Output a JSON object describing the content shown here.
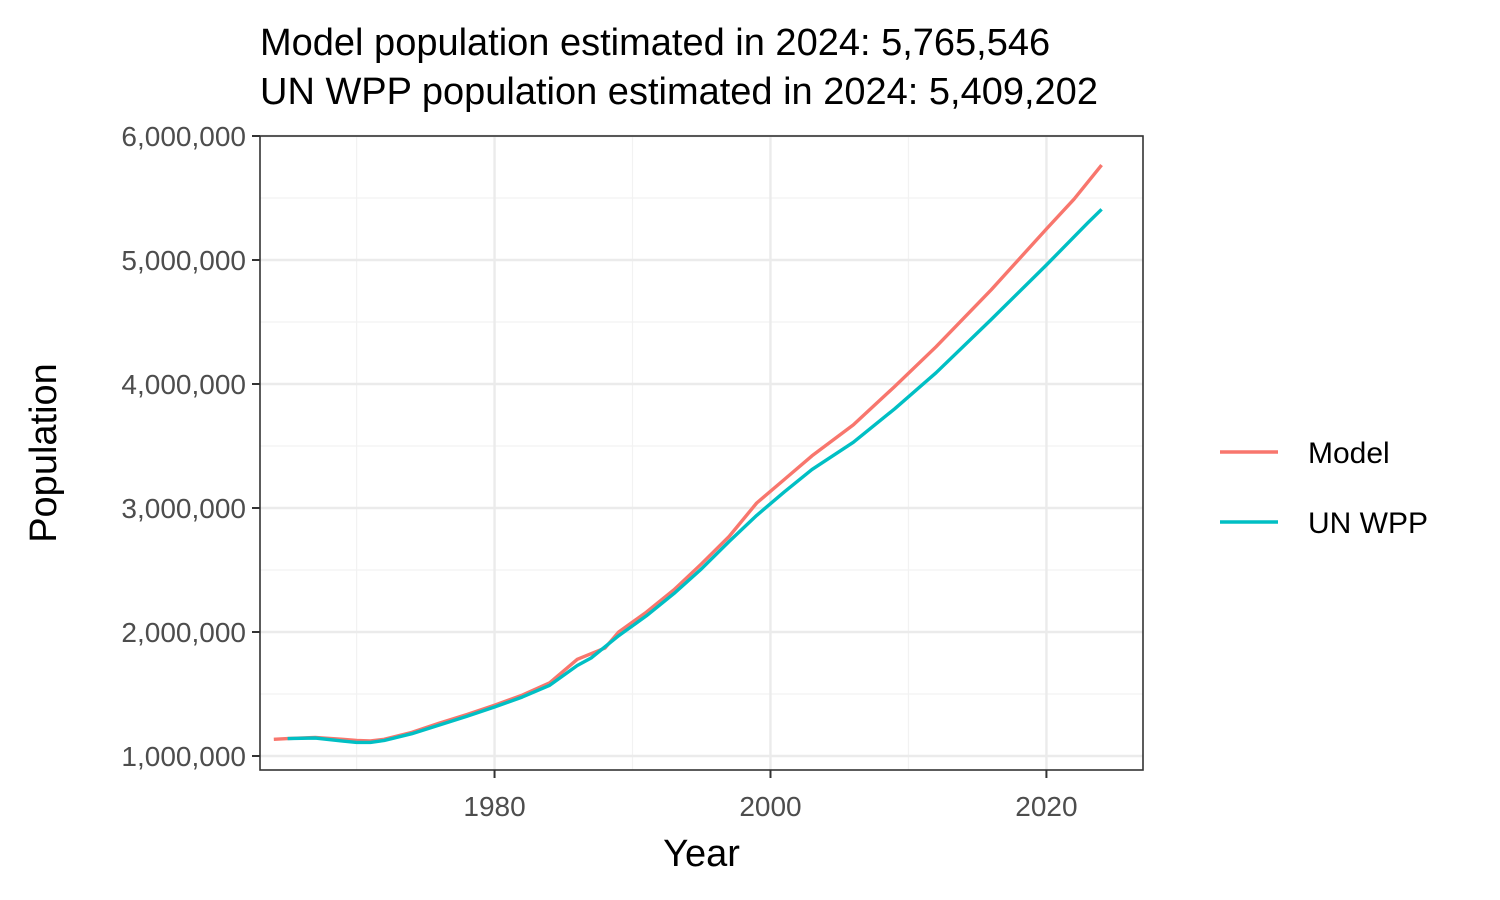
{
  "chart_data": {
    "type": "line",
    "title_lines": [
      "Model population estimated in 2024: 5,765,546",
      "UN WPP population estimated in 2024: 5,409,202"
    ],
    "xlabel": "Year",
    "ylabel": "Population",
    "xlim": [
      1963,
      2027
    ],
    "ylim": [
      900000,
      6000000
    ],
    "x_ticks": [
      1980,
      2000,
      2020
    ],
    "x_minor_ticks": [
      1970,
      1990,
      2010
    ],
    "y_ticks": [
      1000000,
      2000000,
      3000000,
      4000000,
      5000000,
      6000000
    ],
    "y_tick_labels": [
      "1,000,000",
      "2,000,000",
      "3,000,000",
      "4,000,000",
      "5,000,000",
      "6,000,000"
    ],
    "y_minor_ticks": [
      1500000,
      2500000,
      3500000,
      4500000,
      5500000
    ],
    "grid": true,
    "legend_position": "right",
    "series": [
      {
        "name": "Model",
        "color": "#F8766D",
        "points": [
          [
            1964,
            1135000
          ],
          [
            1965,
            1140000
          ],
          [
            1967,
            1150000
          ],
          [
            1969,
            1135000
          ],
          [
            1970,
            1125000
          ],
          [
            1971,
            1122000
          ],
          [
            1972,
            1135000
          ],
          [
            1974,
            1190000
          ],
          [
            1976,
            1265000
          ],
          [
            1978,
            1335000
          ],
          [
            1980,
            1410000
          ],
          [
            1982,
            1490000
          ],
          [
            1984,
            1590000
          ],
          [
            1986,
            1780000
          ],
          [
            1988,
            1870000
          ],
          [
            1989,
            2000000
          ],
          [
            1991,
            2160000
          ],
          [
            1993,
            2340000
          ],
          [
            1995,
            2550000
          ],
          [
            1997,
            2770000
          ],
          [
            1999,
            3040000
          ],
          [
            2001,
            3230000
          ],
          [
            2003,
            3420000
          ],
          [
            2006,
            3670000
          ],
          [
            2009,
            3980000
          ],
          [
            2012,
            4300000
          ],
          [
            2016,
            4760000
          ],
          [
            2020,
            5250000
          ],
          [
            2022,
            5490000
          ],
          [
            2024,
            5765546
          ]
        ]
      },
      {
        "name": "UN WPP",
        "color": "#00BFC4",
        "points": [
          [
            1965,
            1140000
          ],
          [
            1967,
            1145000
          ],
          [
            1969,
            1120000
          ],
          [
            1970,
            1110000
          ],
          [
            1971,
            1110000
          ],
          [
            1972,
            1125000
          ],
          [
            1974,
            1180000
          ],
          [
            1976,
            1250000
          ],
          [
            1978,
            1320000
          ],
          [
            1980,
            1395000
          ],
          [
            1982,
            1475000
          ],
          [
            1984,
            1570000
          ],
          [
            1986,
            1730000
          ],
          [
            1987,
            1790000
          ],
          [
            1989,
            1970000
          ],
          [
            1991,
            2130000
          ],
          [
            1993,
            2310000
          ],
          [
            1995,
            2510000
          ],
          [
            1997,
            2730000
          ],
          [
            1999,
            2940000
          ],
          [
            2001,
            3130000
          ],
          [
            2003,
            3310000
          ],
          [
            2006,
            3530000
          ],
          [
            2009,
            3800000
          ],
          [
            2012,
            4090000
          ],
          [
            2016,
            4520000
          ],
          [
            2020,
            4960000
          ],
          [
            2023,
            5300000
          ],
          [
            2024,
            5409202
          ]
        ]
      }
    ]
  }
}
